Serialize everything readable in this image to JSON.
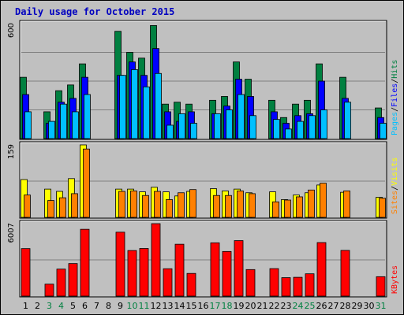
{
  "chart_data": {
    "type": "bar",
    "title": "Daily usage for October 2015",
    "x": [
      "1",
      "2",
      "3",
      "4",
      "5",
      "6",
      "7",
      "8",
      "9",
      "10",
      "11",
      "12",
      "13",
      "14",
      "15",
      "16",
      "17",
      "18",
      "19",
      "20",
      "21",
      "22",
      "23",
      "24",
      "25",
      "26",
      "27",
      "28",
      "29",
      "30",
      "31"
    ],
    "weekend_days": [
      3,
      4,
      10,
      11,
      17,
      18,
      24,
      25,
      31
    ],
    "colors": {
      "background": "#c0c0c0",
      "title": "#0000c0",
      "hits": "#008040",
      "files": "#0000ff",
      "pages": "#00c0ff",
      "visits": "#ffff00",
      "sites": "#ff8000",
      "kbytes": "#ff0000",
      "weekend_label": "#008040"
    },
    "panels": [
      {
        "name": "hits-files-pages",
        "ymax_label": "600",
        "ylim": [
          0,
          600
        ],
        "legend": [
          {
            "text": "Pages",
            "color": "#00c0ff"
          },
          {
            "text": "/",
            "color": "#000000"
          },
          {
            "text": "Files",
            "color": "#0000ff"
          },
          {
            "text": "/",
            "color": "#000000"
          },
          {
            "text": "Hits",
            "color": "#008040"
          }
        ],
        "series": [
          {
            "name": "Hits",
            "color": "#008040",
            "values": [
              320,
              0,
              140,
              250,
              280,
              390,
              0,
              0,
              560,
              450,
              420,
              590,
              180,
              190,
              180,
              0,
              200,
              220,
              400,
              310,
              0,
              200,
              110,
              180,
              200,
              390,
              0,
              320,
              0,
              0,
              160
            ]
          },
          {
            "name": "Files",
            "color": "#0000ff",
            "values": [
              230,
              0,
              80,
              190,
              210,
              320,
              0,
              0,
              330,
              400,
              330,
              470,
              140,
              90,
              140,
              0,
              130,
              170,
              310,
              220,
              0,
              140,
              80,
              120,
              130,
              300,
              0,
              210,
              0,
              0,
              110
            ]
          },
          {
            "name": "Pages",
            "color": "#00c0ff",
            "values": [
              140,
              0,
              90,
              180,
              140,
              230,
              0,
              0,
              330,
              360,
              270,
              340,
              70,
              130,
              80,
              0,
              130,
              150,
              230,
              120,
              0,
              100,
              50,
              90,
              120,
              150,
              0,
              190,
              0,
              0,
              80
            ]
          }
        ]
      },
      {
        "name": "visits-sites",
        "ymax_label": "159",
        "ylim": [
          0,
          159
        ],
        "legend": [
          {
            "text": "Sites",
            "color": "#ff8000"
          },
          {
            "text": "/",
            "color": "#000000"
          },
          {
            "text": "Visits",
            "color": "#ffff00"
          }
        ],
        "series": [
          {
            "name": "Visits",
            "color": "#ffff00",
            "values": [
              83,
              0,
              62,
              57,
              85,
              159,
              0,
              0,
              62,
              62,
              56,
              66,
              56,
              47,
              57,
              0,
              63,
              58,
              62,
              54,
              0,
              56,
              39,
              49,
              54,
              71,
              0,
              55,
              0,
              0,
              44
            ]
          },
          {
            "name": "Sites",
            "color": "#ff8000",
            "values": [
              49,
              0,
              37,
              43,
              52,
              150,
              0,
              0,
              57,
              58,
              48,
              57,
              39,
              54,
              61,
              0,
              48,
              48,
              58,
              52,
              0,
              34,
              38,
              45,
              60,
              75,
              0,
              58,
              0,
              0,
              42
            ]
          }
        ]
      },
      {
        "name": "kbytes",
        "ymax_label": "6007",
        "ylim": [
          0,
          6007
        ],
        "legend": [
          {
            "text": "KBytes",
            "color": "#ff0000"
          }
        ],
        "series": [
          {
            "name": "KBytes",
            "color": "#ff0000",
            "values": [
              3940,
              0,
              990,
              2240,
              2700,
              5540,
              0,
              0,
              5300,
              3780,
              3950,
              6007,
              2270,
              4300,
              1880,
              0,
              4420,
              3700,
              4600,
              2200,
              0,
              2280,
              1530,
              1560,
              1850,
              4440,
              0,
              3790,
              0,
              0,
              1610
            ]
          }
        ]
      }
    ]
  }
}
